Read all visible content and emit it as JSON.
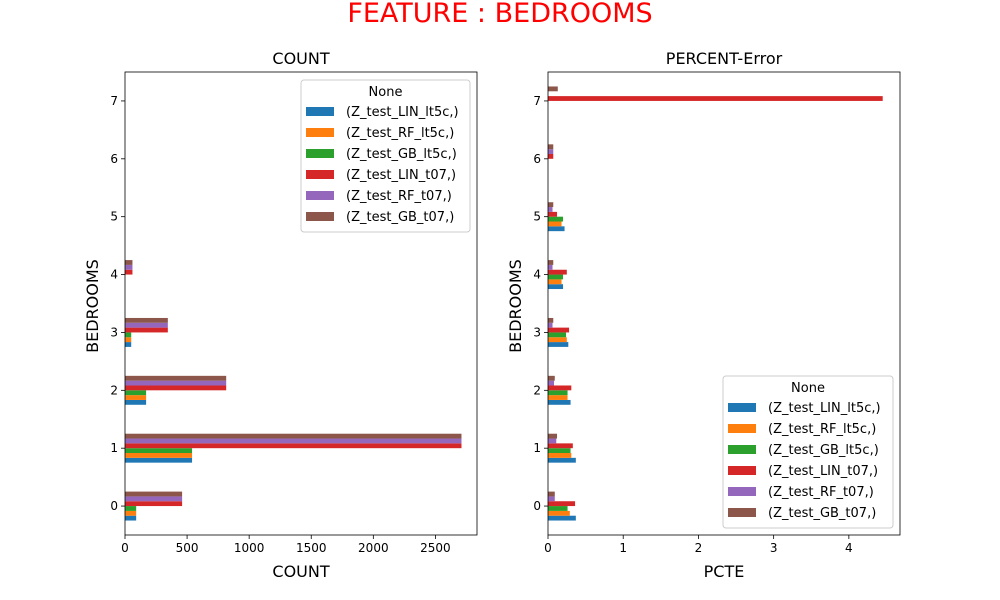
{
  "suptitle": "FEATURE : BEDROOMS",
  "colors": [
    "#1f77b4",
    "#ff7f0e",
    "#2ca02c",
    "#d62728",
    "#9467bd",
    "#8c564b"
  ],
  "chart_data": [
    {
      "type": "bar",
      "orientation": "horizontal",
      "title": "COUNT",
      "xlabel": "COUNT",
      "ylabel": "BEDROOMS",
      "xlim": [
        0,
        2835
      ],
      "xticks": [
        0,
        500,
        1000,
        1500,
        2000,
        2500
      ],
      "categories": [
        "0",
        "1",
        "2",
        "3",
        "4",
        "5",
        "6",
        "7"
      ],
      "legend": {
        "title": "None",
        "loc": "upper right"
      },
      "series": [
        {
          "name": "(Z_test_LIN_lt5c,)",
          "values": [
            90,
            540,
            170,
            50,
            0,
            0,
            0,
            0
          ]
        },
        {
          "name": "(Z_test_RF_lt5c,)",
          "values": [
            90,
            540,
            170,
            50,
            0,
            0,
            0,
            0
          ]
        },
        {
          "name": "(Z_test_GB_lt5c,)",
          "values": [
            90,
            540,
            170,
            50,
            0,
            0,
            0,
            0
          ]
        },
        {
          "name": "(Z_test_LIN_t07,)",
          "values": [
            460,
            2710,
            815,
            345,
            60,
            0,
            0,
            0
          ]
        },
        {
          "name": "(Z_test_RF_t07,)",
          "values": [
            460,
            2710,
            815,
            345,
            60,
            0,
            0,
            0
          ]
        },
        {
          "name": "(Z_test_GB_t07,)",
          "values": [
            460,
            2710,
            815,
            345,
            60,
            0,
            0,
            0
          ]
        }
      ]
    },
    {
      "type": "bar",
      "orientation": "horizontal",
      "title": "PERCENT-Error",
      "xlabel": "PCTE",
      "ylabel": "BEDROOMS",
      "xlim": [
        0,
        4.68
      ],
      "xticks": [
        0,
        1,
        2,
        3,
        4
      ],
      "categories": [
        "0",
        "1",
        "2",
        "3",
        "4",
        "5",
        "6",
        "7"
      ],
      "legend": {
        "title": "None",
        "loc": "lower right"
      },
      "series": [
        {
          "name": "(Z_test_LIN_lt5c,)",
          "values": [
            0.37,
            0.37,
            0.3,
            0.27,
            0.2,
            0.22,
            0,
            0
          ]
        },
        {
          "name": "(Z_test_RF_lt5c,)",
          "values": [
            0.29,
            0.31,
            0.26,
            0.25,
            0.18,
            0.18,
            0,
            0
          ]
        },
        {
          "name": "(Z_test_GB_lt5c,)",
          "values": [
            0.26,
            0.3,
            0.26,
            0.24,
            0.2,
            0.2,
            0,
            0
          ]
        },
        {
          "name": "(Z_test_LIN_t07,)",
          "values": [
            0.36,
            0.33,
            0.31,
            0.28,
            0.25,
            0.12,
            0.07,
            4.45
          ]
        },
        {
          "name": "(Z_test_RF_t07,)",
          "values": [
            0.09,
            0.11,
            0.08,
            0.06,
            0.06,
            0.06,
            0.07,
            0.0
          ]
        },
        {
          "name": "(Z_test_GB_t07,)",
          "values": [
            0.09,
            0.12,
            0.09,
            0.07,
            0.07,
            0.07,
            0.07,
            0.13
          ]
        }
      ]
    }
  ]
}
